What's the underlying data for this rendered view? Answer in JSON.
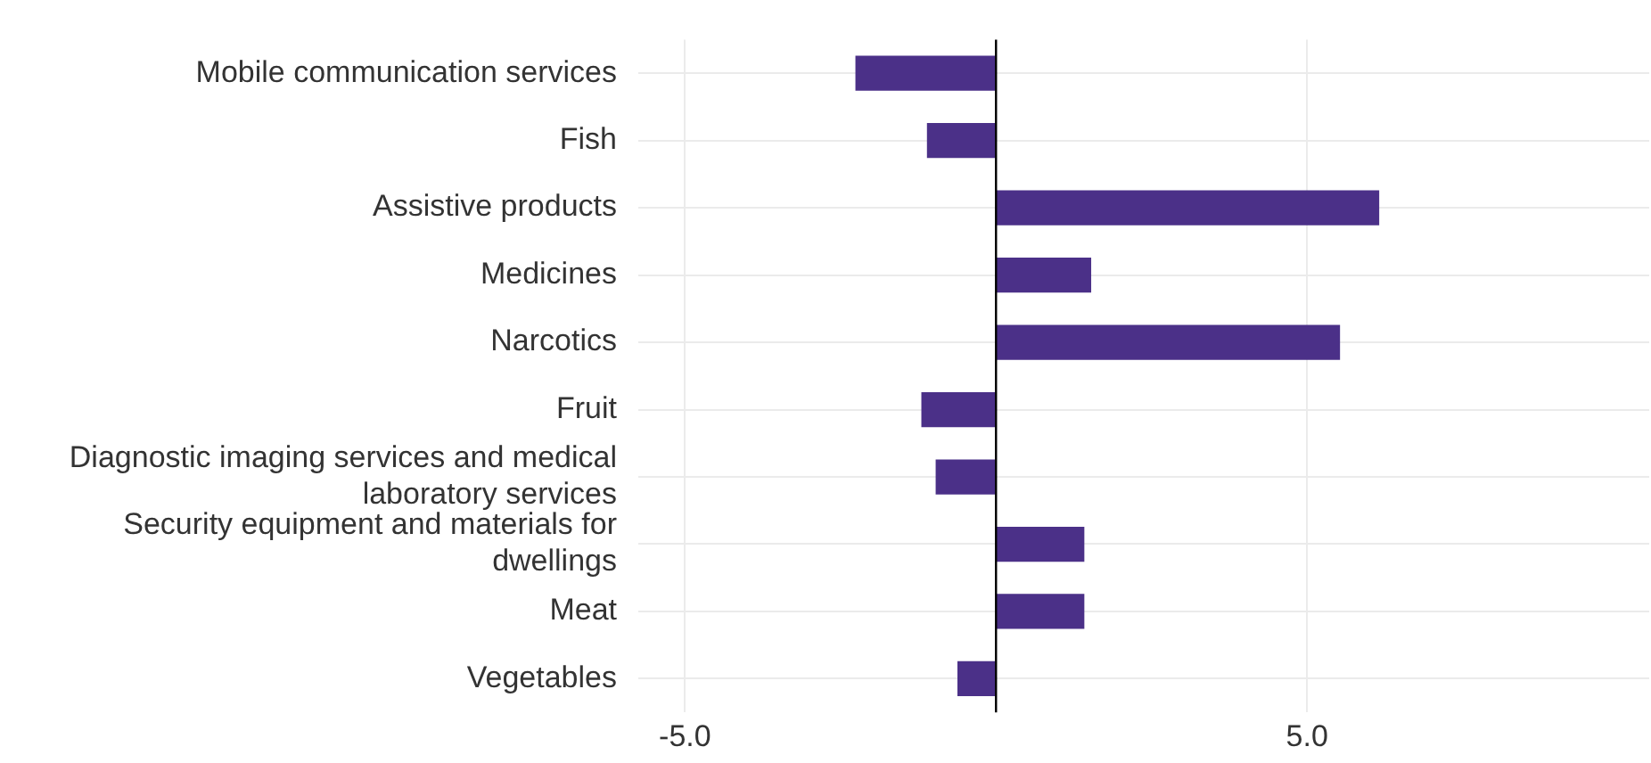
{
  "chart_data": {
    "type": "bar",
    "orientation": "horizontal",
    "categories": [
      "Mobile communication services",
      "Fish",
      "Assistive products",
      "Medicines",
      "Narcotics",
      "Fruit",
      "Diagnostic imaging services and medical laboratory services",
      "Security equipment and materials for dwellings",
      "Meat",
      "Vegetables"
    ],
    "values": [
      -2.26,
      -1.11,
      6.16,
      1.53,
      5.53,
      -1.2,
      -0.97,
      1.42,
      1.42,
      -0.62
    ],
    "color": "#4b3088",
    "xlim": [
      -5.75,
      10.5
    ],
    "xticks": [
      {
        "value": -5,
        "label": "-5.0"
      },
      {
        "value": 5,
        "label": "5.0"
      }
    ],
    "ref_lines": [
      {
        "axis": "x",
        "value": 0,
        "color": "#000000"
      }
    ],
    "grid": true
  }
}
